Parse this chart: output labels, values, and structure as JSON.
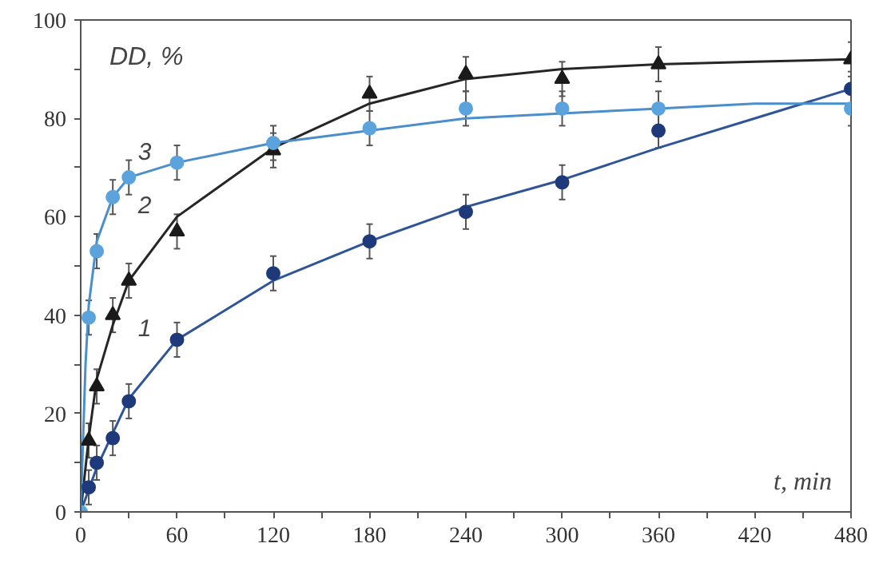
{
  "chart_data": {
    "type": "scatter",
    "xlabel": "t, min",
    "ylabel": "DD, %",
    "xlim": [
      0,
      480
    ],
    "ylim": [
      0,
      100
    ],
    "xticks": [
      0,
      {
        "value": 30,
        "label": null
      },
      60,
      {
        "value": 90,
        "label": null
      },
      120,
      {
        "value": 150,
        "label": null
      },
      180,
      {
        "value": 210,
        "label": null
      },
      240,
      {
        "value": 270,
        "label": null
      },
      300,
      {
        "value": 330,
        "label": null
      },
      360,
      {
        "value": 390,
        "label": null
      },
      420,
      {
        "value": 450,
        "label": null
      },
      480
    ],
    "yticks": [
      0,
      {
        "value": 10,
        "label": null
      },
      20,
      {
        "value": 30,
        "label": null
      },
      40,
      {
        "value": 50,
        "label": null
      },
      60,
      {
        "value": 70,
        "label": null
      },
      80,
      {
        "value": 90,
        "label": null
      },
      100
    ],
    "grid": false,
    "series": [
      {
        "type": "line",
        "name": "1",
        "color": "#2f5597",
        "x": [
          0,
          10,
          20,
          30,
          60,
          120,
          180,
          240,
          300,
          360,
          420,
          480
        ],
        "values": [
          0,
          9,
          16,
          23,
          35,
          47,
          55,
          62,
          67.5,
          74,
          80,
          86
        ]
      },
      {
        "type": "line",
        "name": "2",
        "color": "#262626",
        "x": [
          0,
          5,
          10,
          20,
          30,
          60,
          120,
          180,
          240,
          300,
          360,
          420,
          480
        ],
        "values": [
          0,
          15,
          27,
          38,
          47,
          60,
          74,
          83,
          88,
          90,
          91,
          91.5,
          92
        ]
      },
      {
        "type": "line",
        "name": "3",
        "color": "#4a8fcc",
        "x": [
          0,
          3,
          5,
          10,
          20,
          30,
          60,
          120,
          180,
          240,
          300,
          360,
          420,
          480
        ],
        "values": [
          0,
          30,
          42,
          55,
          64,
          68,
          71,
          75,
          77.5,
          80,
          81,
          82,
          83,
          83
        ]
      },
      {
        "marker": "circle",
        "color": "#1f3a7a",
        "x": [
          5,
          10,
          20,
          30,
          60,
          120,
          180,
          240,
          300,
          360,
          480
        ],
        "values": [
          5,
          10,
          15,
          22.5,
          35,
          48.5,
          55,
          61,
          67,
          77.5,
          86
        ],
        "errors": [
          3.5,
          3.5,
          3.5,
          3.5,
          3.5,
          3.5,
          3.5,
          3.5,
          3.5,
          3.5,
          3.5
        ]
      },
      {
        "marker": "triangle",
        "color": "#1a1a1a",
        "x": [
          5,
          10,
          20,
          30,
          60,
          120,
          180,
          240,
          300,
          360,
          480
        ],
        "values": [
          14.5,
          25.5,
          40,
          47,
          57,
          73.5,
          85,
          89,
          88,
          91,
          92
        ],
        "errors": [
          3.5,
          3.5,
          3.5,
          3.5,
          3.5,
          3.5,
          3.5,
          3.5,
          3.5,
          3.5,
          3.5
        ]
      },
      {
        "marker": "circle",
        "color": "#5ba3dc",
        "x": [
          0,
          5,
          10,
          20,
          30,
          60,
          120,
          180,
          240,
          300,
          360,
          480
        ],
        "values": [
          0,
          39.5,
          53,
          64,
          68,
          71,
          75,
          78,
          82,
          82,
          82,
          82
        ],
        "errors": [
          null,
          3.5,
          3.5,
          3.5,
          3.5,
          3.5,
          3.5,
          3.5,
          3.5,
          3.5,
          3.5,
          3.5
        ]
      }
    ]
  }
}
